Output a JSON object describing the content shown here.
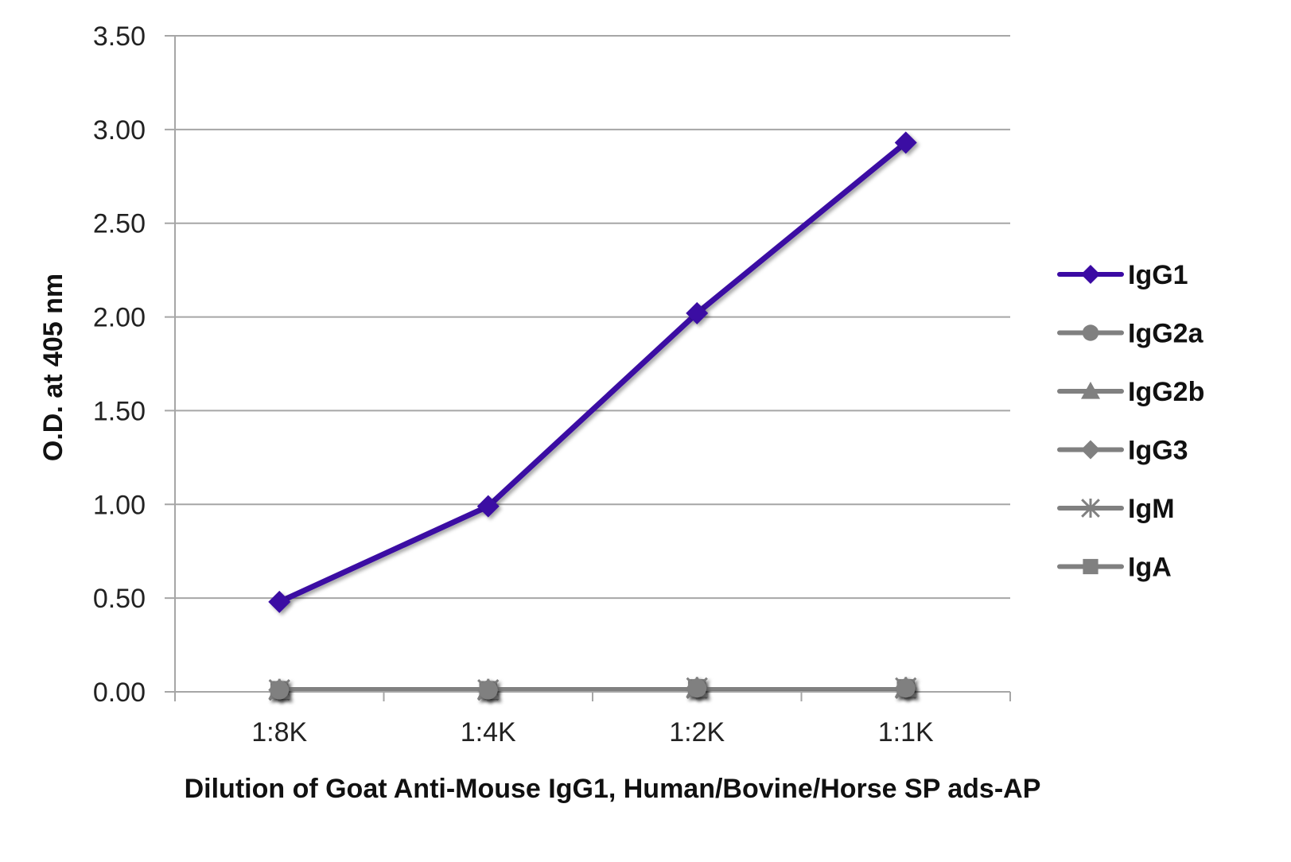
{
  "chart_data": {
    "type": "line",
    "title": "",
    "xlabel": "Dilution of Goat Anti-Mouse IgG1, Human/Bovine/Horse SP ads-AP",
    "ylabel": "O.D. at 405 nm",
    "categories": [
      "1:8K",
      "1:4K",
      "1:2K",
      "1:1K"
    ],
    "ylim": [
      0,
      3.5
    ],
    "yticks": [
      "0.00",
      "0.50",
      "1.00",
      "1.50",
      "2.00",
      "2.50",
      "3.00",
      "3.50"
    ],
    "grid": "horizontal",
    "legend_position": "right",
    "series": [
      {
        "name": "IgG1",
        "values": [
          0.48,
          0.99,
          2.02,
          2.93
        ],
        "color": "#3b0aa3",
        "marker": "diamond"
      },
      {
        "name": "IgG2a",
        "values": [
          0.01,
          0.01,
          0.02,
          0.02
        ],
        "color": "#808080",
        "marker": "circle"
      },
      {
        "name": "IgG2b",
        "values": [
          0.01,
          0.01,
          0.02,
          0.02
        ],
        "color": "#808080",
        "marker": "triangle"
      },
      {
        "name": "IgG3",
        "values": [
          0.01,
          0.01,
          0.02,
          0.02
        ],
        "color": "#808080",
        "marker": "diamond"
      },
      {
        "name": "IgM",
        "values": [
          0.01,
          0.01,
          0.02,
          0.02
        ],
        "color": "#808080",
        "marker": "star"
      },
      {
        "name": "IgA",
        "values": [
          0.01,
          0.01,
          0.02,
          0.02
        ],
        "color": "#808080",
        "marker": "square"
      }
    ]
  }
}
